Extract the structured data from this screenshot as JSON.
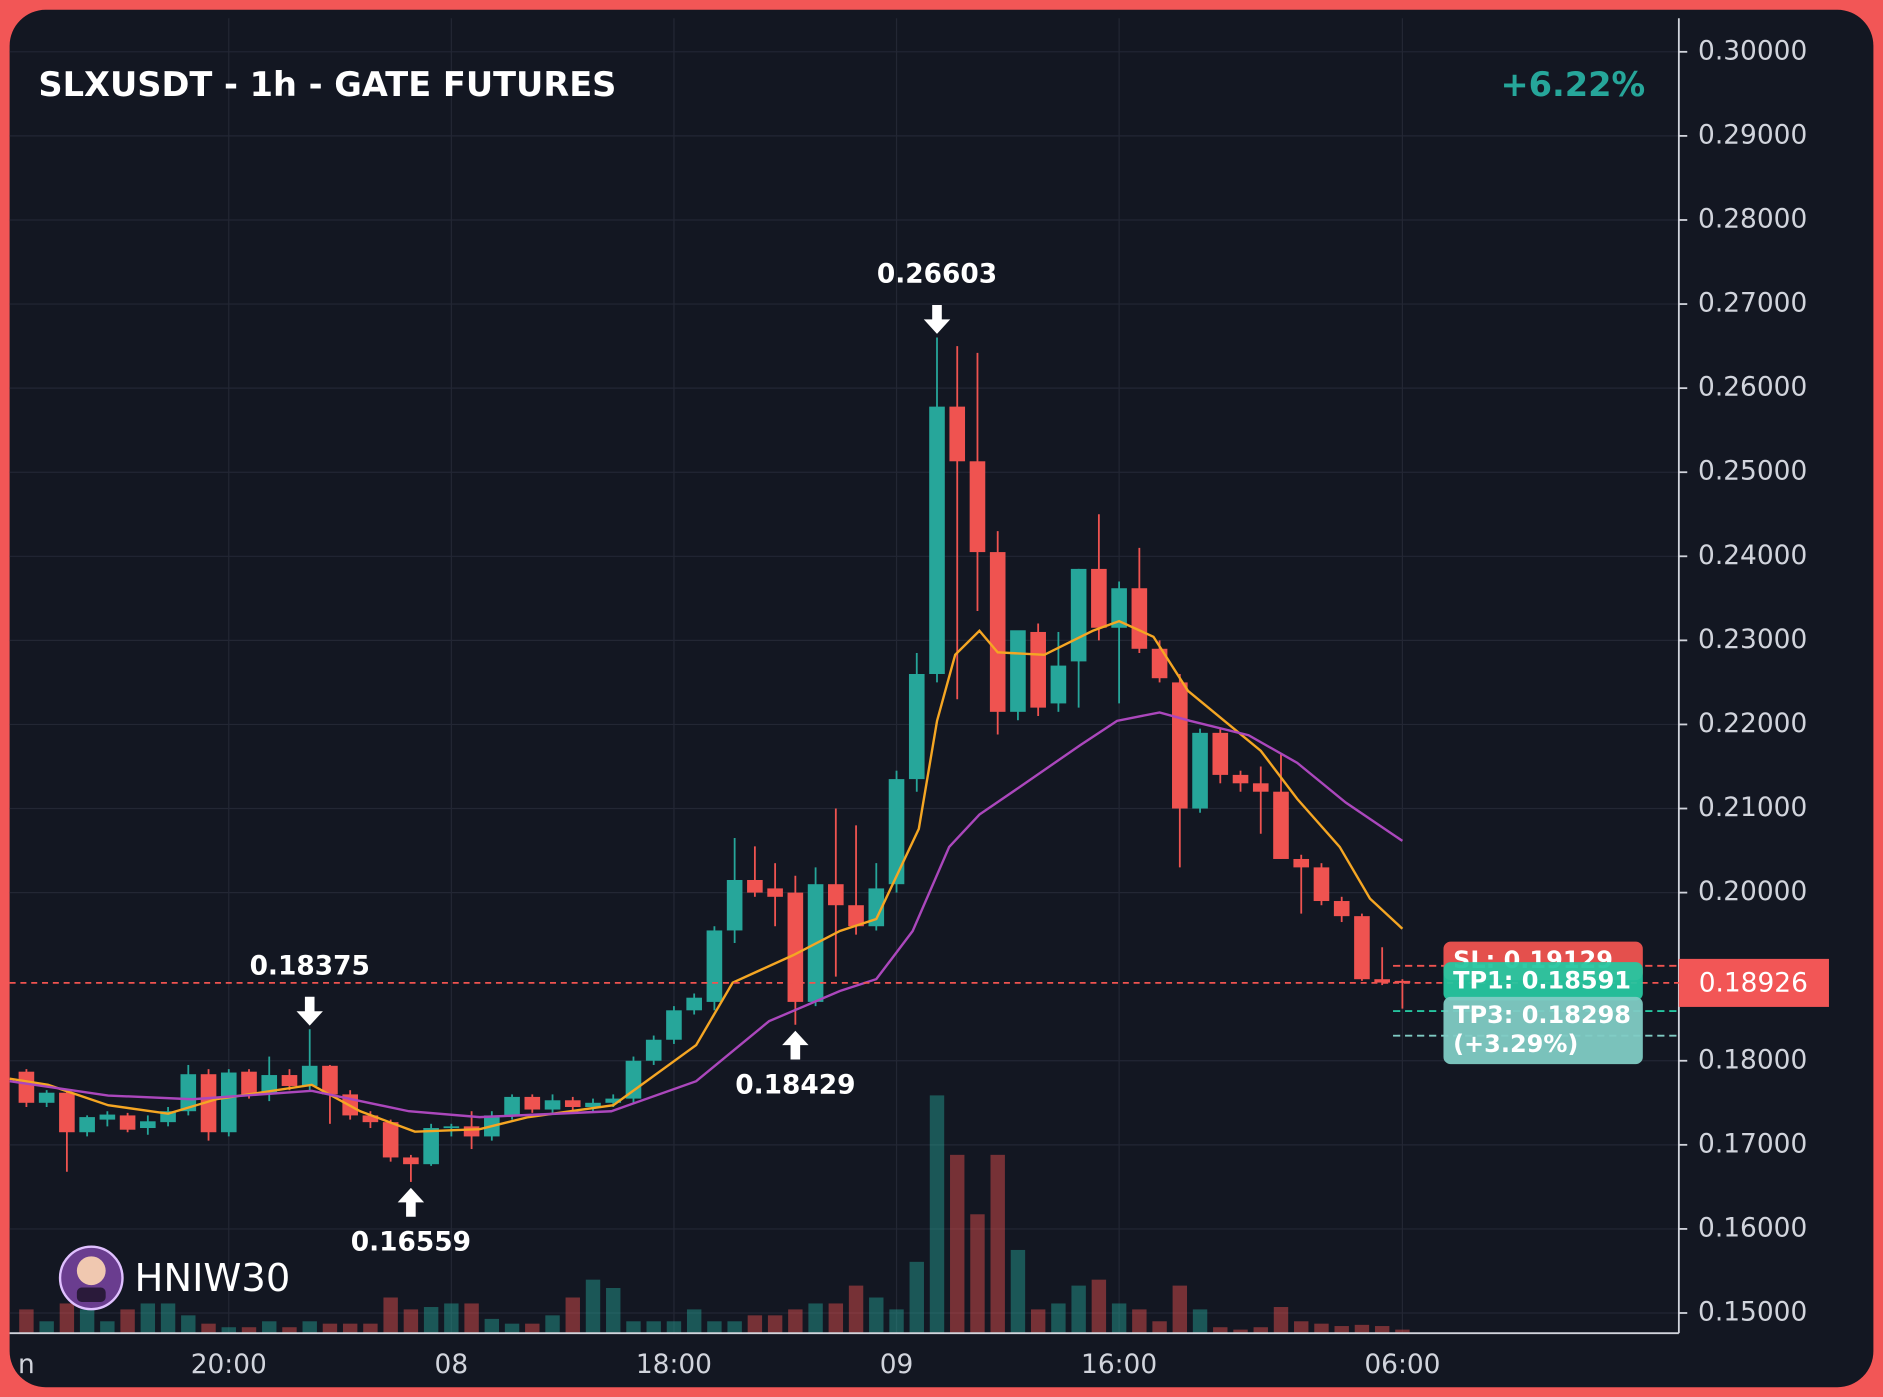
{
  "chart_data": {
    "type": "candlestick",
    "title": "SLXUSDT - 1h - GATE FUTURES",
    "change": "+6.22%",
    "watermark": "HNIW30",
    "up_color": "#26a69a",
    "down_color": "#ef5350",
    "grid": true,
    "ylim": [
      0.1476,
      0.304
    ],
    "yticks": [
      {
        "value": 0.3,
        "label": "0.30000"
      },
      {
        "value": 0.29,
        "label": "0.29000"
      },
      {
        "value": 0.28,
        "label": "0.28000"
      },
      {
        "value": 0.27,
        "label": "0.27000"
      },
      {
        "value": 0.26,
        "label": "0.26000"
      },
      {
        "value": 0.25,
        "label": "0.25000"
      },
      {
        "value": 0.24,
        "label": "0.24000"
      },
      {
        "value": 0.23,
        "label": "0.23000"
      },
      {
        "value": 0.22,
        "label": "0.22000"
      },
      {
        "value": 0.21,
        "label": "0.21000"
      },
      {
        "value": 0.2,
        "label": "0.20000"
      },
      {
        "value": 0.18,
        "label": "0.18000"
      },
      {
        "value": 0.17,
        "label": "0.17000"
      },
      {
        "value": 0.16,
        "label": "0.16000"
      },
      {
        "value": 0.15,
        "label": "0.15000"
      }
    ],
    "categories": [
      "n",
      null,
      null,
      null,
      null,
      null,
      null,
      null,
      null,
      null,
      "20:00",
      null,
      null,
      null,
      null,
      null,
      null,
      null,
      null,
      null,
      null,
      "08",
      null,
      null,
      null,
      null,
      null,
      null,
      null,
      null,
      null,
      null,
      "18:00",
      null,
      null,
      null,
      null,
      null,
      null,
      null,
      null,
      null,
      null,
      "09",
      null,
      null,
      null,
      null,
      null,
      null,
      null,
      null,
      null,
      null,
      "16:00",
      null,
      null,
      null,
      null,
      null,
      null,
      null,
      null,
      null,
      null,
      null,
      null,
      null,
      "06:00"
    ],
    "open": [
      0.1787,
      0.175,
      0.1762,
      0.1715,
      0.173,
      0.1735,
      0.172,
      0.1727,
      0.174,
      0.1784,
      0.1715,
      0.1787,
      0.176,
      0.1783,
      0.177,
      0.1794,
      0.176,
      0.1735,
      0.1727,
      0.1685,
      0.1677,
      0.172,
      0.1722,
      0.171,
      0.1735,
      0.1757,
      0.1742,
      0.1753,
      0.1745,
      0.175,
      0.1755,
      0.18,
      0.1825,
      0.186,
      0.187,
      0.1955,
      0.2015,
      0.2005,
      0.2,
      0.187,
      0.201,
      0.1985,
      0.196,
      0.201,
      0.2135,
      0.226,
      0.2578,
      0.2513,
      0.2405,
      0.2215,
      0.231,
      0.2225,
      0.2275,
      0.2385,
      0.2315,
      0.2362,
      0.229,
      0.225,
      0.21,
      0.219,
      0.214,
      0.213,
      0.212,
      0.204,
      0.203,
      0.199,
      0.1972,
      0.1897,
      0.1895
    ],
    "high": [
      0.179,
      0.1765,
      0.1765,
      0.1735,
      0.174,
      0.1738,
      0.1735,
      0.1745,
      0.1795,
      0.179,
      0.179,
      0.179,
      0.1805,
      0.179,
      0.18375,
      0.1795,
      0.1765,
      0.174,
      0.173,
      0.1688,
      0.1725,
      0.1725,
      0.174,
      0.174,
      0.176,
      0.176,
      0.176,
      0.1757,
      0.1755,
      0.176,
      0.1805,
      0.183,
      0.1865,
      0.188,
      0.196,
      0.2065,
      0.2055,
      0.2035,
      0.202,
      0.203,
      0.21,
      0.208,
      0.2035,
      0.2145,
      0.2285,
      0.26603,
      0.265,
      0.2642,
      0.243,
      0.231,
      0.232,
      0.231,
      0.2385,
      0.245,
      0.237,
      0.241,
      0.23,
      0.226,
      0.2195,
      0.2195,
      0.2145,
      0.215,
      0.2165,
      0.2045,
      0.2035,
      0.1995,
      0.1975,
      0.1935,
      0.1897
    ],
    "low": [
      0.1745,
      0.1745,
      0.1668,
      0.171,
      0.1722,
      0.1715,
      0.1712,
      0.1722,
      0.1735,
      0.1705,
      0.171,
      0.1755,
      0.1752,
      0.1765,
      0.1765,
      0.1725,
      0.173,
      0.172,
      0.168,
      0.16559,
      0.1675,
      0.171,
      0.1695,
      0.1705,
      0.173,
      0.1738,
      0.1738,
      0.174,
      0.174,
      0.1745,
      0.175,
      0.1795,
      0.182,
      0.1855,
      0.186,
      0.194,
      0.1995,
      0.196,
      0.18429,
      0.1865,
      0.19,
      0.195,
      0.1955,
      0.2,
      0.212,
      0.225,
      0.223,
      0.2335,
      0.2188,
      0.2205,
      0.221,
      0.2215,
      0.222,
      0.23,
      0.2225,
      0.2285,
      0.225,
      0.203,
      0.2095,
      0.213,
      0.212,
      0.207,
      0.204,
      0.1975,
      0.1985,
      0.1965,
      0.1895,
      0.189,
      0.1862
    ],
    "close": [
      0.175,
      0.1762,
      0.1715,
      0.1733,
      0.1736,
      0.1718,
      0.1728,
      0.174,
      0.1784,
      0.1715,
      0.1786,
      0.176,
      0.1783,
      0.177,
      0.1794,
      0.176,
      0.1735,
      0.1727,
      0.1685,
      0.1677,
      0.172,
      0.1722,
      0.171,
      0.1735,
      0.1757,
      0.1742,
      0.1753,
      0.1745,
      0.175,
      0.1755,
      0.18,
      0.1825,
      0.186,
      0.1875,
      0.1955,
      0.2015,
      0.2,
      0.1995,
      0.187,
      0.201,
      0.1985,
      0.196,
      0.2005,
      0.2135,
      0.226,
      0.2578,
      0.2513,
      0.2405,
      0.2215,
      0.2312,
      0.222,
      0.227,
      0.2385,
      0.2315,
      0.2362,
      0.229,
      0.2255,
      0.21,
      0.219,
      0.214,
      0.213,
      0.212,
      0.204,
      0.203,
      0.199,
      0.1972,
      0.1897,
      0.1893,
      0.18926
    ],
    "volume": [
      20,
      10,
      25,
      20,
      10,
      20,
      25,
      25,
      15,
      8,
      5,
      5,
      10,
      5,
      10,
      8,
      8,
      8,
      30,
      20,
      22,
      25,
      25,
      12,
      8,
      8,
      15,
      30,
      45,
      38,
      10,
      10,
      10,
      20,
      10,
      10,
      15,
      15,
      20,
      25,
      25,
      40,
      30,
      20,
      60,
      200,
      150,
      100,
      150,
      70,
      20,
      25,
      40,
      45,
      25,
      20,
      10,
      40,
      20,
      5,
      3,
      5,
      22,
      10,
      8,
      6,
      7,
      6,
      3
    ],
    "series": [
      {
        "color": "#f5a623",
        "x": [
          -0.83,
          1.07,
          4.04,
          7.0,
          9.38,
          14.1,
          16.5,
          19.2,
          22.4,
          24.8,
          29.0,
          33.1,
          34.9,
          37.9,
          40.2,
          42.0,
          44.1,
          45.0,
          45.9,
          47.1,
          48.0,
          50.3,
          52.7,
          54.0,
          55.7,
          57.4,
          59.2,
          61.0,
          62.8,
          64.9,
          66.4,
          68.0
        ],
        "values": [
          0.17786,
          0.17714,
          0.17471,
          0.17371,
          0.17543,
          0.17714,
          0.174,
          0.17157,
          0.17186,
          0.17329,
          0.17471,
          0.18186,
          0.18929,
          0.19257,
          0.19543,
          0.19686,
          0.20757,
          0.22043,
          0.22829,
          0.23114,
          0.22857,
          0.22829,
          0.23114,
          0.23229,
          0.23043,
          0.224,
          0.22043,
          0.21686,
          0.21114,
          0.20543,
          0.19929,
          0.19571
        ]
      },
      {
        "color": "#ab47bc",
        "x": [
          -0.83,
          4.04,
          8.19,
          14.1,
          18.9,
          22.4,
          28.9,
          33.1,
          36.7,
          40.2,
          42.0,
          43.8,
          45.6,
          47.1,
          49.1,
          52.1,
          53.9,
          56.0,
          57.5,
          60.4,
          62.8,
          65.2,
          68.0
        ],
        "values": [
          0.17757,
          0.17586,
          0.17543,
          0.17643,
          0.174,
          0.17329,
          0.174,
          0.17757,
          0.18471,
          0.18829,
          0.18971,
          0.19543,
          0.20543,
          0.20929,
          0.21257,
          0.21757,
          0.22043,
          0.22143,
          0.22043,
          0.21871,
          0.21543,
          0.21071,
          0.20614
        ]
      }
    ],
    "annotations": [
      {
        "value": 0.18375,
        "index": 14,
        "side": "above"
      },
      {
        "value": 0.16559,
        "index": 19,
        "side": "below"
      },
      {
        "value": 0.18429,
        "index": 38,
        "side": "below"
      },
      {
        "value": 0.26603,
        "index": 45,
        "side": "above"
      }
    ],
    "last_price": 0.18926,
    "levels": [
      {
        "label": "SL: 0.19129",
        "value": 0.19129,
        "color": "#ef5350"
      },
      {
        "label": "TP1: 0.18591",
        "value": 0.18591,
        "color": "#26c6a0"
      },
      {
        "label": "TP3: 0.18298",
        "value": 0.18298,
        "color": "#80cbc4",
        "note": "(+3.29%)"
      }
    ]
  }
}
